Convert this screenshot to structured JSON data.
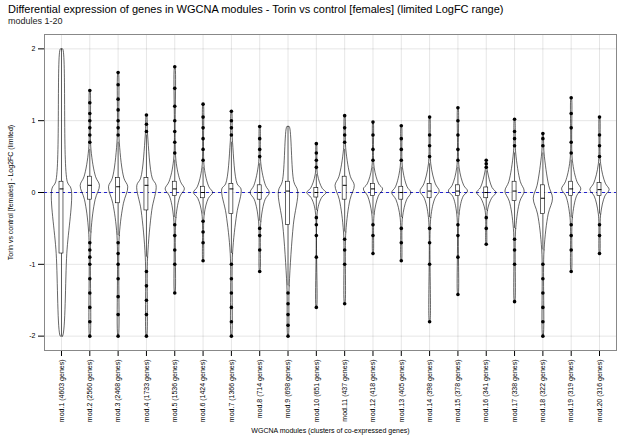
{
  "chart_data": {
    "type": "violin",
    "title": "Differential expression of genes in WGCNA modules - Torin vs control [females] (limited LogFC range)",
    "subtitle": "modules 1-20",
    "x_label": "WGCNA modules (clusters of co-expressed genes)",
    "y_label": "Torin vs control [females] - Log2FC (limited)",
    "categories": [
      "mod.1 (4603 genes)",
      "mod.2 (2560 genes)",
      "mod.3 (2468 genes)",
      "mod.4 (1733 genes)",
      "mod.5 (1536 genes)",
      "mod.6 (1424 genes)",
      "mod.7 (1366 genes)",
      "mod.8 (714 genes)",
      "mod.9 (698 genes)",
      "mod.10 (651 genes)",
      "mod.11 (437 genes)",
      "mod.12 (418 genes)",
      "mod.13 (405 genes)",
      "mod.14 (398 genes)",
      "mod.15 (378 genes)",
      "mod.16 (341 genes)",
      "mod.17 (338 genes)",
      "mod.18 (322 genes)",
      "mod.19 (319 genes)",
      "mod.20 (316 genes)"
    ],
    "min": [
      -2,
      -2,
      -2,
      -2,
      -1.4,
      -0.95,
      -2,
      -1.1,
      -2,
      -1.6,
      -1.55,
      -0.85,
      -0.95,
      -1.8,
      -1.42,
      -0.72,
      -1.52,
      -2,
      -1.1,
      -0.85
    ],
    "whisker_low": [
      -2,
      -0.55,
      -0.6,
      -0.9,
      -0.35,
      -0.3,
      -0.85,
      -0.4,
      -1.3,
      -0.25,
      -0.55,
      -0.3,
      -0.35,
      -0.35,
      -0.3,
      -0.25,
      -0.5,
      -0.8,
      -0.35,
      -0.3
    ],
    "q1": [
      -0.85,
      -0.1,
      -0.15,
      -0.25,
      -0.05,
      -0.08,
      -0.3,
      -0.1,
      -0.45,
      -0.07,
      -0.1,
      -0.05,
      -0.1,
      -0.08,
      -0.05,
      -0.08,
      -0.12,
      -0.3,
      -0.05,
      -0.05
    ],
    "median": [
      0.05,
      0.1,
      0.08,
      0.1,
      0.05,
      0,
      0.05,
      0,
      0.02,
      0,
      0.1,
      0.05,
      0,
      0.02,
      0.02,
      0,
      0.02,
      -0.08,
      0.05,
      0.04
    ],
    "q3": [
      0.15,
      0.22,
      0.2,
      0.2,
      0.15,
      0.08,
      0.12,
      0.1,
      0.15,
      0.06,
      0.22,
      0.12,
      0.08,
      0.12,
      0.1,
      0.07,
      0.15,
      0.1,
      0.15,
      0.13
    ],
    "whisker_high": [
      2,
      0.6,
      0.7,
      0.8,
      0.45,
      0.35,
      0.7,
      0.4,
      0.92,
      0.25,
      0.6,
      0.35,
      0.35,
      0.4,
      0.35,
      0.3,
      0.55,
      0.55,
      0.45,
      0.4
    ],
    "max": [
      2,
      1.42,
      1.67,
      1.08,
      1.75,
      1.23,
      1.13,
      0.92,
      0.92,
      0.68,
      1.07,
      0.98,
      0.93,
      1.05,
      1.18,
      0.45,
      1.02,
      0.82,
      1.32,
      1.05
    ],
    "outliers": [
      [],
      [
        -2,
        -1.8,
        -1.6,
        -1.4,
        -1.2,
        -1.0,
        -0.9,
        -0.8,
        -0.7,
        0.7,
        0.8,
        0.9,
        1.0,
        1.1,
        1.25,
        1.42
      ],
      [
        -2,
        -1.7,
        -1.45,
        -1.2,
        -1.0,
        -0.85,
        -0.7,
        0.8,
        0.9,
        1.0,
        1.15,
        1.3,
        1.5,
        1.67
      ],
      [
        -2,
        -1.7,
        -1.5,
        -1.3,
        -1.1,
        0.85,
        0.95,
        1.08
      ],
      [
        -1.4,
        -1.0,
        -0.8,
        -0.6,
        -0.45,
        0.55,
        0.7,
        0.85,
        1.0,
        1.2,
        1.45,
        1.75
      ],
      [
        -0.95,
        -0.7,
        -0.55,
        -0.4,
        0.45,
        0.6,
        0.75,
        0.9,
        1.05,
        1.23
      ],
      [
        -2,
        -1.8,
        -1.6,
        -1.4,
        -1.2,
        -1.0,
        0.8,
        0.9,
        1.0,
        1.13
      ],
      [
        -1.1,
        -0.8,
        -0.6,
        -0.5,
        0.5,
        0.6,
        0.75,
        0.92
      ],
      [
        -2,
        -1.85,
        -1.7,
        -1.55,
        -1.4
      ],
      [
        -1.6,
        -0.9,
        -0.6,
        -0.45,
        -0.35,
        0.35,
        0.45,
        0.55,
        0.68
      ],
      [
        -1.55,
        -1.0,
        -0.8,
        -0.65,
        0.7,
        0.8,
        0.9,
        1.07
      ],
      [
        -0.85,
        -0.6,
        -0.45,
        0.45,
        0.6,
        0.8,
        0.98
      ],
      [
        -0.95,
        -0.7,
        -0.5,
        0.45,
        0.6,
        0.75,
        0.93
      ],
      [
        -1.8,
        -1.0,
        -0.7,
        -0.5,
        0.5,
        0.65,
        0.8,
        1.05
      ],
      [
        -1.42,
        -0.9,
        -0.6,
        -0.45,
        0.45,
        0.6,
        0.8,
        1.0,
        1.18
      ],
      [
        -0.72,
        -0.5,
        -0.35,
        0.35,
        0.4,
        0.45
      ],
      [
        -1.52,
        -1.0,
        -0.8,
        -0.65,
        0.65,
        0.75,
        0.85,
        1.02
      ],
      [
        -2,
        -1.8,
        -1.6,
        -1.4,
        -1.2,
        -1.0,
        0.65,
        0.75,
        0.82
      ],
      [
        -1.1,
        -0.8,
        -0.6,
        -0.45,
        0.55,
        0.7,
        0.9,
        1.1,
        1.32
      ],
      [
        -0.85,
        -0.6,
        -0.45,
        0.5,
        0.65,
        0.8,
        1.05
      ]
    ],
    "hline": 0,
    "hline_color": "#2222cc",
    "line_style": "dashed",
    "color": "#000000",
    "ylim": [
      -2.2,
      2.2
    ],
    "yticks": [
      -2,
      -1,
      0,
      1,
      2
    ],
    "grid": true
  }
}
